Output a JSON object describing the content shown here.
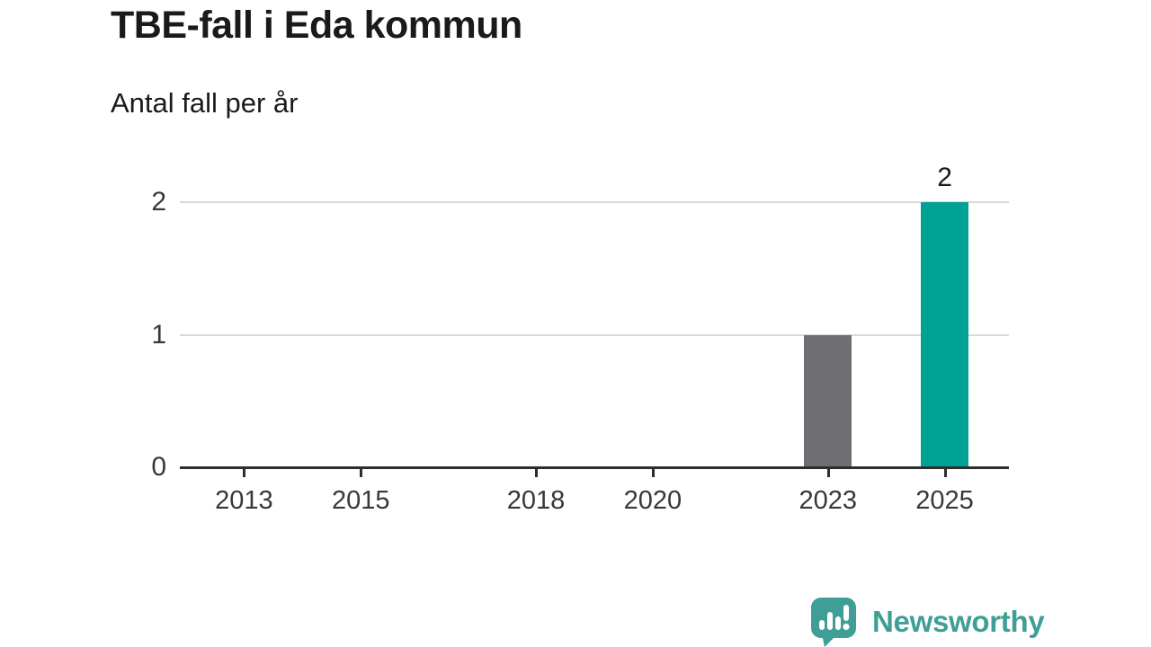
{
  "header": {
    "title": "TBE-fall i Eda kommun",
    "subtitle": "Antal fall per år"
  },
  "chart_data": {
    "type": "bar",
    "title": "TBE-fall i Eda kommun",
    "subtitle": "Antal fall per år",
    "xlabel": "",
    "ylabel": "Antal fall per år",
    "x_ticks": [
      2013,
      2015,
      2018,
      2020,
      2023,
      2025
    ],
    "y_ticks": [
      0,
      1,
      2
    ],
    "xlim": [
      2011.9,
      2026.1
    ],
    "ylim": [
      0,
      2
    ],
    "grid": "horizontal",
    "points": [
      {
        "year": 2023,
        "value": 1,
        "color": "#6e6e73",
        "label": ""
      },
      {
        "year": 2025,
        "value": 2,
        "color": "#00a296",
        "label": "2"
      }
    ],
    "colors": {
      "default_bar": "#6e6e73",
      "highlight_bar": "#00a296",
      "grid": "#d9d9d9",
      "axis": "#2e2e2e",
      "tick_label": "#383838",
      "value_label": "#1a1a1a"
    }
  },
  "footer": {
    "brand": "Newsworthy",
    "brand_color": "#3f9e96",
    "logo_icon": "newsworthy-speech-bubble-bar-chart-icon"
  }
}
